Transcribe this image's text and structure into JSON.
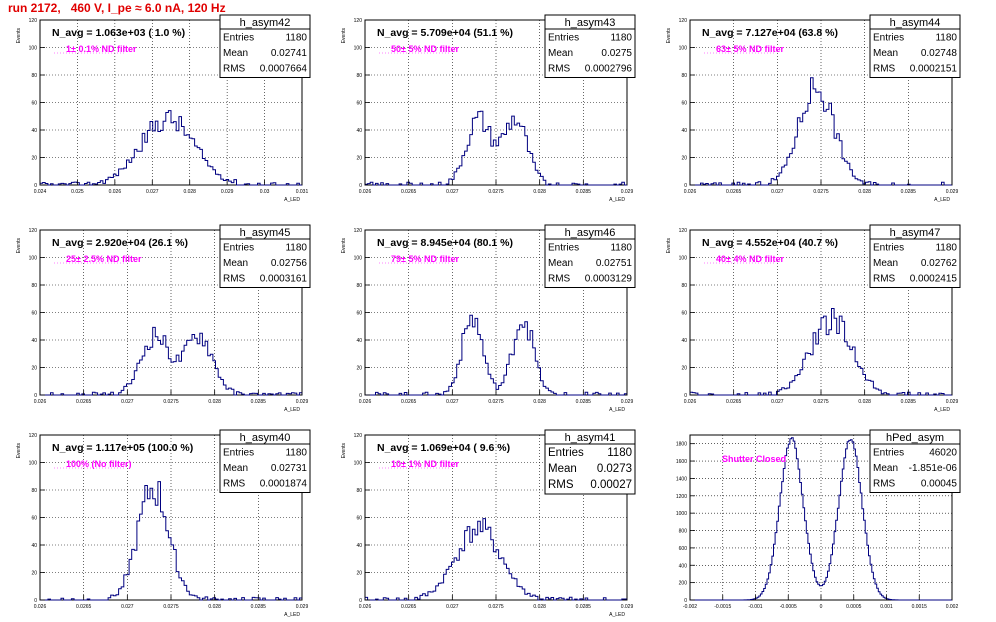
{
  "page_title": "run 2172,   460 V, I_pe ≈ 6.0 nA, 120 Hz",
  "chart_data": [
    {
      "type": "histogram",
      "name": "h_asym42",
      "ylabel": "Events",
      "xlabel": "A_LED",
      "ylim": [
        0,
        120
      ],
      "yticks": [
        0,
        20,
        40,
        60,
        80,
        100,
        120
      ],
      "xlim": [
        0.024,
        0.031
      ],
      "xticks": [
        0.024,
        0.025,
        0.026,
        0.027,
        0.028,
        0.029,
        0.03,
        0.031
      ],
      "xtick_labels": [
        "0.024",
        "0.025",
        "0.026",
        "0.027",
        "0.028",
        "0.029",
        "0.03",
        "0.031"
      ],
      "navg": "N_avg = 1.063e+03 ( 1.0 %)",
      "filter": "1± 0.1% ND filter",
      "stats": {
        "title": "h_asym42",
        "entries": "1180",
        "mean": "0.02741",
        "rms": "0.0007664"
      },
      "peaks": [
        {
          "mu": 0.02741,
          "sigma": 0.00072,
          "w": 1
        }
      ],
      "peak_y": 48,
      "seed": 42
    },
    {
      "type": "histogram",
      "name": "h_asym43",
      "ylabel": "Events",
      "xlabel": "A_LED",
      "ylim": [
        0,
        120
      ],
      "yticks": [
        0,
        20,
        40,
        60,
        80,
        100,
        120
      ],
      "xlim": [
        0.026,
        0.029
      ],
      "xticks": [
        0.026,
        0.0265,
        0.027,
        0.0275,
        0.028,
        0.0285,
        0.029
      ],
      "xtick_labels": [
        "0.026",
        "0.0265",
        "0.027",
        "0.0275",
        "0.028",
        "0.0285",
        "0.029"
      ],
      "navg": "N_avg = 5.709e+04 (51.1 %)",
      "filter": "50± 5% ND filter",
      "stats": {
        "title": "h_asym43",
        "entries": "1180",
        "mean": "0.0275",
        "rms": "0.0002796"
      },
      "peaks": [
        {
          "mu": 0.0273,
          "sigma": 0.00014,
          "w": 1
        },
        {
          "mu": 0.02772,
          "sigma": 0.00014,
          "w": 1
        }
      ],
      "peak_y": 48,
      "seed": 43
    },
    {
      "type": "histogram",
      "name": "h_asym44",
      "ylabel": "Events",
      "xlabel": "A_LED",
      "ylim": [
        0,
        120
      ],
      "yticks": [
        0,
        20,
        40,
        60,
        80,
        100,
        120
      ],
      "xlim": [
        0.026,
        0.029
      ],
      "xticks": [
        0.026,
        0.0265,
        0.027,
        0.0275,
        0.028,
        0.0285,
        0.029
      ],
      "xtick_labels": [
        "0.026",
        "0.0265",
        "0.027",
        "0.0275",
        "0.028",
        "0.0285",
        "0.029"
      ],
      "navg": "N_avg = 7.127e+04 (63.8 %)",
      "filter": "63± 5% ND filter",
      "stats": {
        "title": "h_asym44",
        "entries": "1180",
        "mean": "0.02748",
        "rms": "0.0002151"
      },
      "peaks": [
        {
          "mu": 0.02745,
          "sigma": 0.0002,
          "w": 1
        }
      ],
      "peak_y": 72,
      "seed": 44
    },
    {
      "type": "histogram",
      "name": "h_asym45",
      "ylabel": "Events",
      "xlabel": "A_LED",
      "ylim": [
        0,
        120
      ],
      "yticks": [
        0,
        20,
        40,
        60,
        80,
        100,
        120
      ],
      "xlim": [
        0.026,
        0.029
      ],
      "xticks": [
        0.026,
        0.0265,
        0.027,
        0.0275,
        0.028,
        0.0285,
        0.029
      ],
      "xtick_labels": [
        "0.026",
        "0.0265",
        "0.027",
        "0.0275",
        "0.028",
        "0.0285",
        "0.029"
      ],
      "navg": "N_avg = 2.920e+04 (26.1 %)",
      "filter": "25± 2.5% ND filter",
      "stats": {
        "title": "h_asym45",
        "entries": "1180",
        "mean": "0.02756",
        "rms": "0.0003161"
      },
      "peaks": [
        {
          "mu": 0.02732,
          "sigma": 0.00016,
          "w": 1
        },
        {
          "mu": 0.02782,
          "sigma": 0.00016,
          "w": 1
        }
      ],
      "peak_y": 44,
      "seed": 45
    },
    {
      "type": "histogram",
      "name": "h_asym46",
      "ylabel": "Events",
      "xlabel": "A_LED",
      "ylim": [
        0,
        120
      ],
      "yticks": [
        0,
        20,
        40,
        60,
        80,
        100,
        120
      ],
      "xlim": [
        0.026,
        0.029
      ],
      "xticks": [
        0.026,
        0.0265,
        0.027,
        0.0275,
        0.028,
        0.0285,
        0.029
      ],
      "xtick_labels": [
        "0.026",
        "0.0265",
        "0.027",
        "0.0275",
        "0.028",
        "0.0285",
        "0.029"
      ],
      "navg": "N_avg = 8.945e+04 (80.1 %)",
      "filter": "79± 5% ND filter",
      "stats": {
        "title": "h_asym46",
        "entries": "1180",
        "mean": "0.02751",
        "rms": "0.0003129"
      },
      "peaks": [
        {
          "mu": 0.02723,
          "sigma": 0.00012,
          "w": 1
        },
        {
          "mu": 0.02781,
          "sigma": 0.00012,
          "w": 1
        }
      ],
      "peak_y": 56,
      "seed": 46
    },
    {
      "type": "histogram",
      "name": "h_asym47",
      "ylabel": "Events",
      "xlabel": "A_LED",
      "ylim": [
        0,
        120
      ],
      "yticks": [
        0,
        20,
        40,
        60,
        80,
        100,
        120
      ],
      "xlim": [
        0.026,
        0.029
      ],
      "xticks": [
        0.026,
        0.0265,
        0.027,
        0.0275,
        0.028,
        0.0285,
        0.029
      ],
      "xtick_labels": [
        "0.026",
        "0.0265",
        "0.027",
        "0.0275",
        "0.028",
        "0.0285",
        "0.029"
      ],
      "navg": "N_avg = 4.552e+04 (40.7 %)",
      "filter": "40± 4% ND filter",
      "stats": {
        "title": "h_asym47",
        "entries": "1180",
        "mean": "0.02762",
        "rms": "0.0002415"
      },
      "peaks": [
        {
          "mu": 0.02762,
          "sigma": 0.00024,
          "w": 1
        }
      ],
      "peak_y": 54,
      "seed": 47
    },
    {
      "type": "histogram",
      "name": "h_asym40",
      "ylabel": "Events",
      "xlabel": "A_LED",
      "ylim": [
        0,
        120
      ],
      "yticks": [
        0,
        20,
        40,
        60,
        80,
        100,
        120
      ],
      "xlim": [
        0.026,
        0.029
      ],
      "xticks": [
        0.026,
        0.0265,
        0.027,
        0.0275,
        0.028,
        0.0285,
        0.029
      ],
      "xtick_labels": [
        "0.026",
        "0.0265",
        "0.027",
        "0.0275",
        "0.028",
        "0.0285",
        "0.029"
      ],
      "navg": "N_avg = 1.117e+05 (100.0 %)",
      "filter": "100% (No filter)",
      "stats": {
        "title": "h_asym40",
        "entries": "1180",
        "mean": "0.02731",
        "rms": "0.0001874"
      },
      "peaks": [
        {
          "mu": 0.0273,
          "sigma": 0.00018,
          "w": 1
        }
      ],
      "peak_y": 80,
      "seed": 40
    },
    {
      "type": "histogram",
      "name": "h_asym41",
      "ylabel": "Events",
      "xlabel": "A_LED",
      "ylim": [
        0,
        120
      ],
      "yticks": [
        0,
        20,
        40,
        60,
        80,
        100,
        120
      ],
      "xlim": [
        0.026,
        0.029
      ],
      "xticks": [
        0.026,
        0.0265,
        0.027,
        0.0275,
        0.028,
        0.0285,
        0.029
      ],
      "xtick_labels": [
        "0.026",
        "0.0265",
        "0.027",
        "0.0275",
        "0.028",
        "0.0285",
        "0.029"
      ],
      "navg": "N_avg = 1.069e+04 ( 9.6 %)",
      "filter": "10± 1% ND filter",
      "stats": {
        "title": "h_asym41",
        "entries": "1180",
        "mean": "0.0273",
        "rms": "0.00027"
      },
      "peaks": [
        {
          "mu": 0.0273,
          "sigma": 0.00026,
          "w": 1
        }
      ],
      "peak_y": 52,
      "seed": 41,
      "large_stats": true
    },
    {
      "type": "histogram",
      "name": "hPed_asym",
      "ylabel": "",
      "xlabel": "",
      "ylim": [
        0,
        1900
      ],
      "yticks": [
        0,
        200,
        400,
        600,
        800,
        1000,
        1200,
        1400,
        1600,
        1800
      ],
      "xlim": [
        -0.002,
        0.002
      ],
      "xticks": [
        -0.002,
        -0.0015,
        -0.001,
        -0.0005,
        0,
        0.0005,
        0.001,
        0.0015,
        0.002
      ],
      "xtick_labels": [
        "-0.002",
        "-0.0015",
        "-0.001",
        "-0.0005",
        "0",
        "0.0005",
        "0.001",
        "0.0015",
        "0.002"
      ],
      "navg": "",
      "filter": "Shutter Closed",
      "stats": {
        "title": "hPed_asym",
        "entries": "46020",
        "mean": "-1.851e-06",
        "rms": "0.00045"
      },
      "peaks": [
        {
          "mu": -0.00045,
          "sigma": 0.00018,
          "w": 1
        },
        {
          "mu": 0.00045,
          "sigma": 0.00018,
          "w": 1
        }
      ],
      "peak_y": 1840,
      "seed": 99,
      "smooth": true
    }
  ],
  "stats_labels": {
    "entries": "Entries",
    "mean": "Mean",
    "rms": "RMS"
  },
  "colors": {
    "title": "#e00000",
    "filter": "#ff00ff",
    "line": "#000080",
    "grid": "#000000"
  }
}
